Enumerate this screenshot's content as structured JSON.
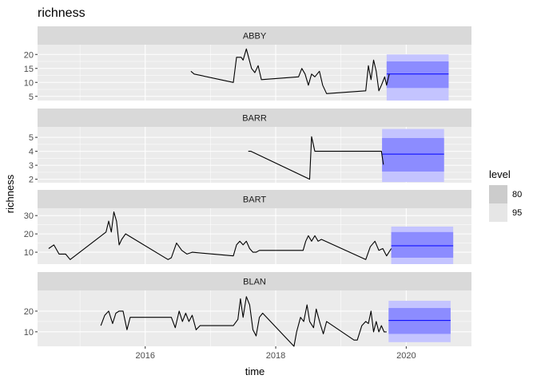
{
  "chart_data": {
    "type": "line",
    "title": "richness",
    "xlabel": "time",
    "ylabel": "richness",
    "x_ticks": [
      "2016",
      "2018",
      "2020"
    ],
    "xlim": [
      2014.35,
      2021.0
    ],
    "legend": {
      "title": "level",
      "placement": "right",
      "entries": [
        {
          "label": "80",
          "color": "#cccccc"
        },
        {
          "label": "95",
          "color": "#e6e6e6"
        }
      ]
    },
    "colors": {
      "panel_bg": "#ebebeb",
      "grid": "#ffffff",
      "strip_bg": "#d9d9d9",
      "line": "#000000",
      "forecast_mean": "#0000ff",
      "band80": "#8c8cff",
      "band95": "#c4c4ff"
    },
    "panels": [
      {
        "label": "ABBY",
        "ylim": [
          3.5,
          23.5
        ],
        "y_ticks": [
          5,
          10,
          15,
          20
        ],
        "series": {
          "x": [
            2016.7,
            2016.75,
            2017.35,
            2017.4,
            2017.47,
            2017.5,
            2017.55,
            2017.63,
            2017.68,
            2017.73,
            2017.78,
            2018.35,
            2018.4,
            2018.45,
            2018.5,
            2018.55,
            2018.6,
            2018.67,
            2018.72,
            2018.78,
            2019.38,
            2019.42,
            2019.46,
            2019.5,
            2019.54,
            2019.58,
            2019.62,
            2019.67,
            2019.7,
            2019.74
          ],
          "y": [
            14,
            13,
            10,
            19,
            19,
            18,
            22,
            15,
            13.5,
            16,
            11,
            12,
            15,
            13,
            9,
            13,
            12,
            14,
            9,
            6,
            7,
            16,
            11,
            18,
            14,
            7,
            9,
            12,
            9,
            13
          ]
        },
        "forecast": {
          "x_start": 2019.7,
          "x_end": 2020.65,
          "mean": 13,
          "lo80": 8,
          "hi80": 17.5,
          "lo95": 3.5,
          "hi95": 20
        }
      },
      {
        "label": "BARR",
        "ylim": [
          1.75,
          5.75
        ],
        "y_ticks": [
          2,
          3,
          4,
          5
        ],
        "series": {
          "x": [
            2017.58,
            2017.62,
            2018.52,
            2018.55,
            2018.6,
            2018.65,
            2019.62,
            2019.65
          ],
          "y": [
            4.0,
            4.0,
            2.0,
            5.05,
            4.0,
            4.0,
            4.0,
            3.05
          ]
        },
        "forecast": {
          "x_start": 2019.63,
          "x_end": 2020.58,
          "mean": 3.8,
          "lo80": 2.55,
          "hi80": 4.95,
          "lo95": 1.8,
          "hi95": 5.6
        }
      },
      {
        "label": "BART",
        "ylim": [
          3.5,
          34
        ],
        "y_ticks": [
          10,
          20,
          30
        ],
        "series": {
          "x": [
            2014.52,
            2014.6,
            2014.68,
            2014.78,
            2014.85,
            2015.4,
            2015.44,
            2015.48,
            2015.52,
            2015.56,
            2015.6,
            2015.64,
            2015.7,
            2016.35,
            2016.4,
            2016.48,
            2016.56,
            2016.64,
            2016.72,
            2017.35,
            2017.4,
            2017.45,
            2017.5,
            2017.55,
            2017.6,
            2017.65,
            2017.7,
            2017.75,
            2018.42,
            2018.46,
            2018.5,
            2018.55,
            2018.6,
            2018.65,
            2018.7,
            2019.38,
            2019.45,
            2019.52,
            2019.58,
            2019.64,
            2019.7,
            2019.77
          ],
          "y": [
            12,
            14,
            9,
            9,
            6,
            21,
            27,
            21,
            32,
            27,
            14,
            17,
            20,
            6,
            7,
            15,
            11,
            9,
            10,
            8,
            14,
            16,
            14,
            16,
            12,
            10,
            10,
            11,
            11,
            16,
            19,
            16,
            19,
            16,
            17,
            6,
            13,
            16,
            11,
            12,
            8,
            12
          ]
        },
        "forecast": {
          "x_start": 2019.77,
          "x_end": 2020.72,
          "mean": 13.5,
          "lo80": 7,
          "hi80": 21,
          "lo95": 3.5,
          "hi95": 24
        }
      },
      {
        "label": "BLAN",
        "ylim": [
          3,
          30
        ],
        "y_ticks": [
          10,
          20
        ],
        "series": {
          "x": [
            2015.32,
            2015.38,
            2015.44,
            2015.5,
            2015.55,
            2015.6,
            2015.66,
            2015.72,
            2015.77,
            2015.82,
            2016.4,
            2016.46,
            2016.52,
            2016.57,
            2016.62,
            2016.67,
            2016.72,
            2016.78,
            2016.84,
            2017.35,
            2017.42,
            2017.46,
            2017.5,
            2017.55,
            2017.6,
            2017.65,
            2017.7,
            2017.75,
            2017.8,
            2018.28,
            2018.32,
            2018.38,
            2018.43,
            2018.48,
            2018.52,
            2018.58,
            2018.62,
            2018.68,
            2018.73,
            2018.78,
            2019.2,
            2019.25,
            2019.32,
            2019.38,
            2019.42,
            2019.46,
            2019.5,
            2019.54,
            2019.58,
            2019.62,
            2019.66,
            2019.7
          ],
          "y": [
            13,
            18,
            20,
            14,
            19,
            20,
            20,
            11,
            17,
            17,
            17,
            12,
            20,
            15,
            19,
            15,
            18,
            11,
            13,
            13,
            16,
            26,
            17,
            27,
            23,
            11,
            8,
            17,
            19,
            3,
            10,
            17,
            15,
            23,
            15,
            12,
            21,
            14,
            9,
            15,
            6,
            6,
            13,
            15,
            14,
            20,
            10,
            15,
            10,
            13,
            10,
            10
          ]
        },
        "forecast": {
          "x_start": 2019.73,
          "x_end": 2020.68,
          "mean": 15.5,
          "lo80": 9,
          "hi80": 21.5,
          "lo95": 5,
          "hi95": 25
        }
      }
    ]
  }
}
